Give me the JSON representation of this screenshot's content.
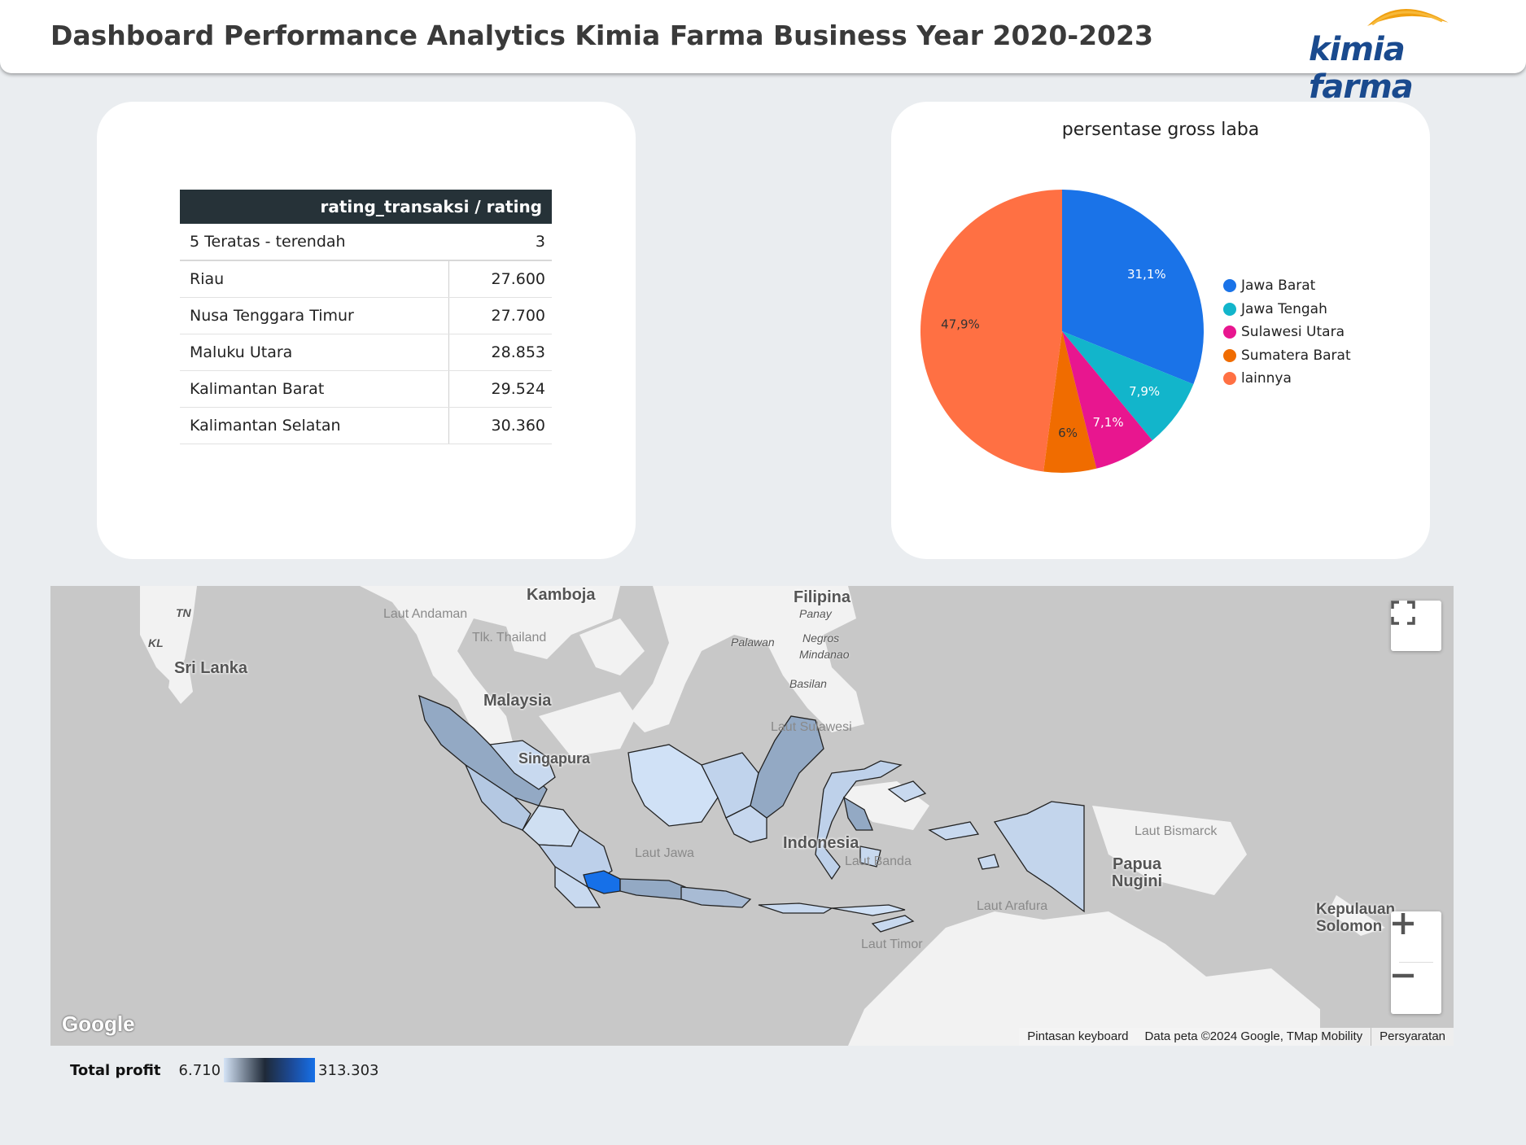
{
  "header": {
    "title": "Dashboard Performance Analytics Kimia Farma Business Year 2020-2023",
    "logo_text": "kimia farma"
  },
  "rating_table": {
    "column_header": "rating_transaksi / rating",
    "summary": {
      "label": "5 Teratas - terendah",
      "value": "3"
    },
    "rows": [
      {
        "province": "Riau",
        "value": "27.600"
      },
      {
        "province": "Nusa Tenggara Timur",
        "value": "27.700"
      },
      {
        "province": "Maluku Utara",
        "value": "28.853"
      },
      {
        "province": "Kalimantan Barat",
        "value": "29.524"
      },
      {
        "province": "Kalimantan Selatan",
        "value": "30.360"
      }
    ]
  },
  "pie": {
    "title": "persentase gross laba"
  },
  "chart_data": {
    "type": "pie",
    "title": "persentase gross laba",
    "slices": [
      {
        "name": "Jawa Barat",
        "value": 31.1,
        "label": "31,1%",
        "color": "#1a73e8"
      },
      {
        "name": "Jawa Tengah",
        "value": 7.9,
        "label": "7,9%",
        "color": "#12b5cb"
      },
      {
        "name": "Sulawesi Utara",
        "value": 7.1,
        "label": "7,1%",
        "color": "#e8168f"
      },
      {
        "name": "Sumatera Barat",
        "value": 6,
        "label": "6%",
        "color": "#f06c00"
      },
      {
        "name": "lainnya",
        "value": 47.9,
        "label": "47,9%",
        "color": "#ff7043"
      }
    ],
    "legend_position": "right"
  },
  "map": {
    "labels": {
      "kamboja": "Kamboja",
      "filipina": "Filipina",
      "panay": "Panay",
      "negros": "Negros",
      "palawan": "Palawan",
      "mindanao": "Mindanao",
      "basilan": "Basilan",
      "sri_lanka": "Sri Lanka",
      "tn": "TN",
      "kl": "KL",
      "laut_andaman": "Laut Andaman",
      "tlk_thailand": "Tlk. Thailand",
      "malaysia": "Malaysia",
      "singapura": "Singapura",
      "laut_sulawesi": "Laut Sulawesi",
      "laut_jawa": "Laut Jawa",
      "laut_banda": "Laut Banda",
      "indonesia": "Indonesia",
      "laut_bismarck": "Laut Bismarck",
      "papua_nugini": "Papua Nugini",
      "laut_arafura": "Laut Arafura",
      "laut_timor": "Laut Timor",
      "kepulauan_solomon": "Kepulauan Solomon"
    },
    "google_logo": "Google",
    "attribution": {
      "shortcuts": "Pintasan keyboard",
      "data": "Data peta ©2024 Google, TMap Mobility",
      "terms": "Persyaratan"
    },
    "fullscreen_icon": "fullscreen-icon",
    "zoom_in_icon": "plus-icon",
    "zoom_out_icon": "minus-icon"
  },
  "legend_scale": {
    "title": "Total profit",
    "min": "6.710",
    "max": "313.303"
  }
}
